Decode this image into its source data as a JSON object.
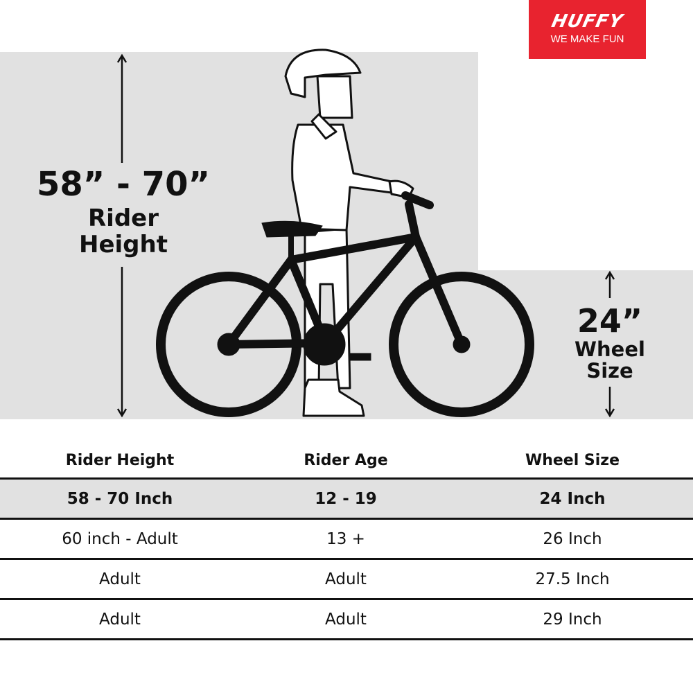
{
  "logo": {
    "brand": "HUFFY",
    "tagline": "WE MAKE FUN",
    "color": "#e8232f"
  },
  "rider_height_callout": {
    "value": "58” - 70”",
    "label_line1": "Rider",
    "label_line2": "Height"
  },
  "wheel_size_callout": {
    "value": "24”",
    "label_line1": "Wheel",
    "label_line2": "Size"
  },
  "table": {
    "headers": [
      "Rider Height",
      "Rider Age",
      "Wheel Size"
    ],
    "rows": [
      [
        "58 - 70 Inch",
        "12 - 19",
        "24 Inch"
      ],
      [
        "60 inch - Adult",
        "13 +",
        "26 Inch"
      ],
      [
        "Adult",
        "Adult",
        "27.5 Inch"
      ],
      [
        "Adult",
        "Adult",
        "29 Inch"
      ]
    ],
    "highlighted_row": 0,
    "highlight_color": "#e1e1e1"
  }
}
